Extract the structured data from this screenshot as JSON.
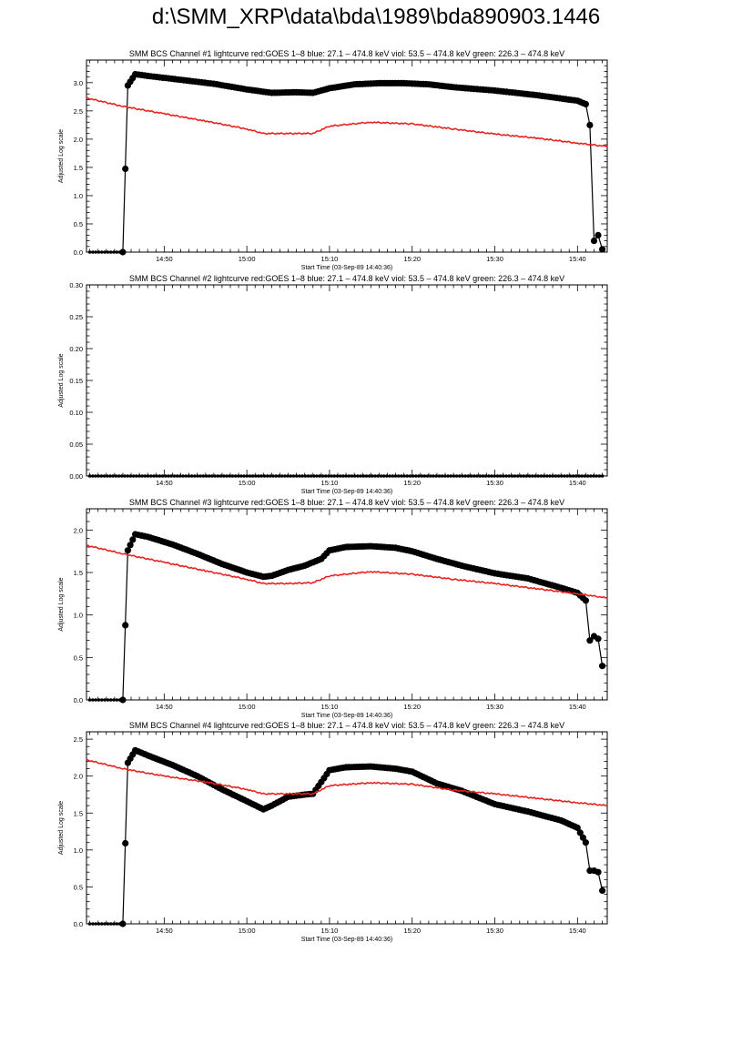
{
  "page": {
    "title": "d:\\SMM_XRP\\data\\bda\\1989\\bda890903.1446"
  },
  "colors": {
    "black_series": "#000000",
    "red_series": "#e8231f",
    "axes": "#000000",
    "background": "#ffffff"
  },
  "chart_data": [
    {
      "type": "line",
      "title": "SMM BCS Channel #1 lightcurve  red:GOES 1–8  blue: 27.1 – 474.8 keV  viol: 53.5 – 474.8 keV  green: 226.3 – 474.8 keV",
      "xlabel": "Start Time (03-Sep-89 14:40:36)",
      "ylabel": "Adjusted Log scale",
      "xlim": [
        "14:40:36",
        "15:43:36"
      ],
      "ylim": [
        0,
        3.4
      ],
      "xticks": [
        "14:50",
        "15:00",
        "15:10",
        "15:20",
        "15:30",
        "15:40"
      ],
      "yticks": [
        "0.0",
        "0.5",
        "1.0",
        "1.5",
        "2.0",
        "2.5",
        "3.0"
      ],
      "series": [
        {
          "color": "black",
          "x": [
            "14:41",
            "14:45",
            "14:45:36",
            "14:46:30",
            "14:48",
            "14:52",
            "14:56",
            "15:00",
            "15:03",
            "15:06",
            "15:08",
            "15:10",
            "15:13",
            "15:16",
            "15:19",
            "15:22",
            "15:25",
            "15:30",
            "15:35",
            "15:40",
            "15:41",
            "15:41:30",
            "15:42",
            "15:42:30",
            "15:43"
          ],
          "y": [
            0.0,
            0.0,
            2.95,
            3.15,
            3.12,
            3.05,
            2.98,
            2.88,
            2.82,
            2.83,
            2.82,
            2.9,
            2.97,
            2.99,
            2.99,
            2.97,
            2.92,
            2.86,
            2.78,
            2.68,
            2.62,
            2.25,
            0.2,
            0.3,
            0.05
          ]
        },
        {
          "color": "red",
          "x": [
            "14:40:36",
            "14:45",
            "14:50",
            "14:55",
            "15:00",
            "15:02",
            "15:05",
            "15:08",
            "15:10",
            "15:15",
            "15:20",
            "15:25",
            "15:30",
            "15:35",
            "15:40",
            "15:43:36"
          ],
          "y": [
            2.73,
            2.58,
            2.45,
            2.32,
            2.18,
            2.1,
            2.1,
            2.1,
            2.23,
            2.3,
            2.27,
            2.18,
            2.09,
            2.02,
            1.93,
            1.87
          ]
        }
      ]
    },
    {
      "type": "line",
      "title": "SMM BCS Channel #2 lightcurve  red:GOES 1–8  blue: 27.1 – 474.8 keV  viol: 53.5 – 474.8 keV  green: 226.3 – 474.8 keV",
      "xlabel": "Start Time (03-Sep-89 14:40:36)",
      "ylabel": "Adjusted Log scale",
      "xlim": [
        "14:40:36",
        "15:43:36"
      ],
      "ylim": [
        0,
        0.3
      ],
      "xticks": [
        "14:50",
        "15:00",
        "15:10",
        "15:20",
        "15:30",
        "15:40"
      ],
      "yticks": [
        "0.00",
        "0.05",
        "0.10",
        "0.15",
        "0.20",
        "0.25",
        "0.30"
      ],
      "series": [
        {
          "color": "black",
          "x": [
            "14:41",
            "15:43"
          ],
          "y": [
            0.0,
            0.0
          ]
        }
      ]
    },
    {
      "type": "line",
      "title": "SMM BCS Channel #3 lightcurve  red:GOES 1–8  blue: 27.1 – 474.8 keV  viol: 53.5 – 474.8 keV  green: 226.3 – 474.8 keV",
      "xlabel": "Start Time (03-Sep-89 14:40:36)",
      "ylabel": "Adjusted Log scale",
      "xlim": [
        "14:40:36",
        "15:43:36"
      ],
      "ylim": [
        0,
        2.25
      ],
      "xticks": [
        "14:50",
        "15:00",
        "15:10",
        "15:20",
        "15:30",
        "15:40"
      ],
      "yticks": [
        "0.0",
        "0.5",
        "1.0",
        "1.5",
        "2.0"
      ],
      "series": [
        {
          "color": "black",
          "x": [
            "14:41",
            "14:45",
            "14:45:36",
            "14:46:30",
            "14:48",
            "14:51",
            "14:54",
            "14:57",
            "15:00",
            "15:02",
            "15:03",
            "15:05",
            "15:07",
            "15:09",
            "15:10",
            "15:12",
            "15:15",
            "15:18",
            "15:20",
            "15:23",
            "15:26",
            "15:30",
            "15:34",
            "15:38",
            "15:40",
            "15:41",
            "15:41:30",
            "15:42",
            "15:42:30",
            "15:43"
          ],
          "y": [
            0.0,
            0.0,
            1.76,
            1.95,
            1.92,
            1.83,
            1.72,
            1.6,
            1.5,
            1.45,
            1.46,
            1.53,
            1.58,
            1.66,
            1.76,
            1.8,
            1.81,
            1.79,
            1.75,
            1.66,
            1.58,
            1.49,
            1.43,
            1.32,
            1.26,
            1.17,
            0.7,
            0.75,
            0.72,
            0.4
          ]
        },
        {
          "color": "red",
          "x": [
            "14:40:36",
            "14:45",
            "14:50",
            "14:55",
            "15:00",
            "15:02",
            "15:05",
            "15:08",
            "15:10",
            "15:15",
            "15:20",
            "15:25",
            "15:30",
            "15:35",
            "15:40",
            "15:43:36"
          ],
          "y": [
            1.82,
            1.72,
            1.62,
            1.52,
            1.42,
            1.37,
            1.37,
            1.38,
            1.46,
            1.51,
            1.48,
            1.42,
            1.37,
            1.31,
            1.25,
            1.2
          ]
        }
      ]
    },
    {
      "type": "line",
      "title": "SMM BCS Channel #4 lightcurve  red:GOES 1–8  blue: 27.1 – 474.8 keV  viol: 53.5 – 474.8 keV  green: 226.3 – 474.8 keV",
      "xlabel": "Start Time (03-Sep-89 14:40:36)",
      "ylabel": "Adjusted Log scale",
      "xlim": [
        "14:40:36",
        "15:43:36"
      ],
      "ylim": [
        0,
        2.6
      ],
      "xticks": [
        "14:50",
        "15:00",
        "15:10",
        "15:20",
        "15:30",
        "15:40"
      ],
      "yticks": [
        "0.0",
        "0.5",
        "1.0",
        "1.5",
        "2.0",
        "2.5"
      ],
      "series": [
        {
          "color": "black",
          "x": [
            "14:41",
            "14:45",
            "14:45:36",
            "14:46:30",
            "14:48",
            "14:51",
            "14:54",
            "14:57",
            "15:00",
            "15:02",
            "15:03",
            "15:05",
            "15:07",
            "15:08",
            "15:09",
            "15:10",
            "15:12",
            "15:15",
            "15:18",
            "15:20",
            "15:23",
            "15:26",
            "15:30",
            "15:34",
            "15:38",
            "15:40",
            "15:41",
            "15:41:30",
            "15:42",
            "15:42:30",
            "15:43"
          ],
          "y": [
            0.0,
            0.0,
            2.18,
            2.35,
            2.28,
            2.15,
            2.0,
            1.82,
            1.66,
            1.55,
            1.6,
            1.72,
            1.75,
            1.76,
            1.92,
            2.08,
            2.12,
            2.13,
            2.1,
            2.06,
            1.9,
            1.8,
            1.62,
            1.52,
            1.4,
            1.3,
            1.1,
            0.72,
            0.72,
            0.7,
            0.45
          ]
        },
        {
          "color": "red",
          "x": [
            "14:40:36",
            "14:45",
            "14:50",
            "14:55",
            "15:00",
            "15:02",
            "15:05",
            "15:08",
            "15:10",
            "15:15",
            "15:20",
            "15:25",
            "15:30",
            "15:35",
            "15:40",
            "15:43:36"
          ],
          "y": [
            2.22,
            2.1,
            2.0,
            1.92,
            1.82,
            1.76,
            1.76,
            1.76,
            1.87,
            1.91,
            1.89,
            1.81,
            1.76,
            1.7,
            1.64,
            1.6
          ]
        }
      ]
    }
  ]
}
